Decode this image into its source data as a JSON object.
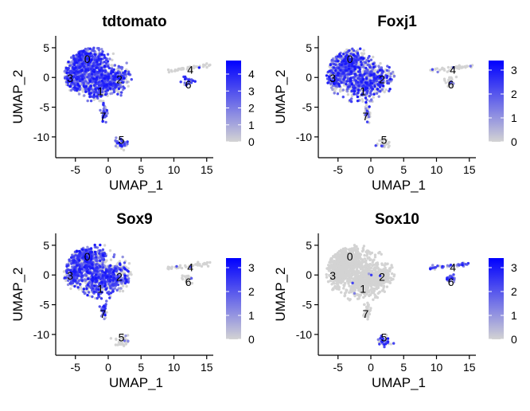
{
  "chart_data": [
    {
      "type": "scatter",
      "title": "tdtomato",
      "xlabel": "UMAP_1",
      "ylabel": "UMAP_2",
      "xlim": [
        -8,
        16
      ],
      "ylim": [
        -13.5,
        7
      ],
      "x_ticks": [
        -5,
        0,
        5,
        10,
        15
      ],
      "y_ticks": [
        5,
        0,
        -5,
        -10
      ],
      "x_tick_labels": [
        "-5",
        "0",
        "5",
        "10",
        "15"
      ],
      "y_tick_labels": [
        "5",
        "0",
        "-5",
        "-10"
      ],
      "color_scale": {
        "low": "#d3d3d3",
        "high": "#0000ff",
        "min": 0,
        "max": 4.8
      },
      "legend_ticks": [
        0,
        1,
        2,
        3,
        4
      ],
      "legend_labels": [
        "0",
        "1",
        "2",
        "3",
        "4"
      ],
      "cluster_labels": [
        {
          "label": "0",
          "x": -3.2,
          "y": 3.1
        },
        {
          "label": "1",
          "x": -1.2,
          "y": -2.3
        },
        {
          "label": "2",
          "x": 1.7,
          "y": -0.3
        },
        {
          "label": "3",
          "x": -5.8,
          "y": -0.1
        },
        {
          "label": "4",
          "x": 12.5,
          "y": 1.3
        },
        {
          "label": "5",
          "x": 2.0,
          "y": -10.5
        },
        {
          "label": "6",
          "x": 12.2,
          "y": -1.2
        },
        {
          "label": "7",
          "x": -0.8,
          "y": -6.5
        }
      ],
      "clusters": [
        {
          "id": "0",
          "x": -3.5,
          "y": 2.5,
          "sx": 1.6,
          "sy": 1.4,
          "n": 520,
          "expr": 0.7
        },
        {
          "id": "3",
          "x": -5.3,
          "y": 0.0,
          "sx": 0.7,
          "sy": 1.1,
          "n": 160,
          "expr": 0.7
        },
        {
          "id": "1",
          "x": -1.6,
          "y": -1.3,
          "sx": 1.5,
          "sy": 1.3,
          "n": 340,
          "expr": 0.68
        },
        {
          "id": "2",
          "x": 0.9,
          "y": -0.2,
          "sx": 1.4,
          "sy": 1.1,
          "n": 280,
          "expr": 0.66
        },
        {
          "id": "4",
          "x": 12.6,
          "y": 1.1,
          "sx": 1.3,
          "sy": 0.2,
          "n": 40,
          "expr": 0.05
        },
        {
          "id": "6",
          "x": 12.1,
          "y": -0.7,
          "sx": 0.4,
          "sy": 0.4,
          "n": 22,
          "expr": 0.6
        },
        {
          "id": "7",
          "x": -0.6,
          "y": -6.0,
          "sx": 0.25,
          "sy": 0.7,
          "n": 35,
          "expr": 0.75
        },
        {
          "id": "5",
          "x": 2.0,
          "y": -11.2,
          "sx": 0.5,
          "sy": 0.5,
          "n": 35,
          "expr": 0.7
        }
      ]
    },
    {
      "type": "scatter",
      "title": "Foxj1",
      "xlabel": "UMAP_1",
      "ylabel": "UMAP_2",
      "xlim": [
        -8,
        16
      ],
      "ylim": [
        -13.5,
        7
      ],
      "x_ticks": [
        -5,
        0,
        5,
        10,
        15
      ],
      "y_ticks": [
        5,
        0,
        -5,
        -10
      ],
      "x_tick_labels": [
        "-5",
        "0",
        "5",
        "10",
        "15"
      ],
      "y_tick_labels": [
        "5",
        "0",
        "-5",
        "-10"
      ],
      "color_scale": {
        "low": "#d3d3d3",
        "high": "#0000ff",
        "min": 0,
        "max": 3.4
      },
      "legend_ticks": [
        0,
        1,
        2,
        3
      ],
      "legend_labels": [
        "0",
        "1",
        "2",
        "3"
      ],
      "cluster_labels": [
        {
          "label": "0",
          "x": -3.2,
          "y": 3.1
        },
        {
          "label": "1",
          "x": -1.2,
          "y": -2.3
        },
        {
          "label": "2",
          "x": 1.7,
          "y": -0.3
        },
        {
          "label": "3",
          "x": -5.8,
          "y": -0.1
        },
        {
          "label": "4",
          "x": 12.5,
          "y": 1.3
        },
        {
          "label": "5",
          "x": 2.0,
          "y": -10.5
        },
        {
          "label": "6",
          "x": 12.2,
          "y": -1.2
        },
        {
          "label": "7",
          "x": -0.8,
          "y": -6.5
        }
      ],
      "clusters": [
        {
          "id": "0",
          "x": -3.5,
          "y": 2.5,
          "sx": 1.6,
          "sy": 1.4,
          "n": 520,
          "expr": 0.55
        },
        {
          "id": "3",
          "x": -5.3,
          "y": 0.0,
          "sx": 0.7,
          "sy": 1.1,
          "n": 160,
          "expr": 0.55
        },
        {
          "id": "1",
          "x": -1.6,
          "y": -1.3,
          "sx": 1.5,
          "sy": 1.3,
          "n": 340,
          "expr": 0.55
        },
        {
          "id": "2",
          "x": 0.9,
          "y": -0.2,
          "sx": 1.4,
          "sy": 1.1,
          "n": 280,
          "expr": 0.5
        },
        {
          "id": "4",
          "x": 12.6,
          "y": 1.1,
          "sx": 1.3,
          "sy": 0.2,
          "n": 40,
          "expr": 0.05
        },
        {
          "id": "6",
          "x": 12.1,
          "y": -0.7,
          "sx": 0.4,
          "sy": 0.4,
          "n": 22,
          "expr": 0.1
        },
        {
          "id": "7",
          "x": -0.6,
          "y": -6.0,
          "sx": 0.25,
          "sy": 0.7,
          "n": 35,
          "expr": 0.4
        },
        {
          "id": "5",
          "x": 2.0,
          "y": -11.2,
          "sx": 0.5,
          "sy": 0.5,
          "n": 35,
          "expr": 0.05
        }
      ]
    },
    {
      "type": "scatter",
      "title": "Sox9",
      "xlabel": "UMAP_1",
      "ylabel": "UMAP_2",
      "xlim": [
        -8,
        16
      ],
      "ylim": [
        -13.5,
        7
      ],
      "x_ticks": [
        -5,
        0,
        5,
        10,
        15
      ],
      "y_ticks": [
        5,
        0,
        -5,
        -10
      ],
      "x_tick_labels": [
        "-5",
        "0",
        "5",
        "10",
        "15"
      ],
      "y_tick_labels": [
        "5",
        "0",
        "-5",
        "-10"
      ],
      "color_scale": {
        "low": "#d3d3d3",
        "high": "#0000ff",
        "min": 0,
        "max": 3.4
      },
      "legend_ticks": [
        0,
        1,
        2,
        3
      ],
      "legend_labels": [
        "0",
        "1",
        "2",
        "3"
      ],
      "cluster_labels": [
        {
          "label": "0",
          "x": -3.2,
          "y": 3.1
        },
        {
          "label": "1",
          "x": -1.2,
          "y": -2.3
        },
        {
          "label": "2",
          "x": 1.7,
          "y": -0.3
        },
        {
          "label": "3",
          "x": -5.8,
          "y": -0.1
        },
        {
          "label": "4",
          "x": 12.5,
          "y": 1.3
        },
        {
          "label": "5",
          "x": 2.0,
          "y": -10.5
        },
        {
          "label": "6",
          "x": 12.2,
          "y": -1.2
        },
        {
          "label": "7",
          "x": -0.8,
          "y": -6.5
        }
      ],
      "clusters": [
        {
          "id": "0",
          "x": -3.5,
          "y": 2.5,
          "sx": 1.6,
          "sy": 1.4,
          "n": 520,
          "expr": 0.6
        },
        {
          "id": "3",
          "x": -5.3,
          "y": 0.0,
          "sx": 0.7,
          "sy": 1.1,
          "n": 160,
          "expr": 0.6
        },
        {
          "id": "1",
          "x": -1.6,
          "y": -1.3,
          "sx": 1.5,
          "sy": 1.3,
          "n": 340,
          "expr": 0.58
        },
        {
          "id": "2",
          "x": 0.9,
          "y": -0.2,
          "sx": 1.4,
          "sy": 1.1,
          "n": 280,
          "expr": 0.5
        },
        {
          "id": "4",
          "x": 12.6,
          "y": 1.1,
          "sx": 1.3,
          "sy": 0.2,
          "n": 40,
          "expr": 0.05
        },
        {
          "id": "6",
          "x": 12.1,
          "y": -0.7,
          "sx": 0.4,
          "sy": 0.4,
          "n": 22,
          "expr": 0.05
        },
        {
          "id": "7",
          "x": -0.6,
          "y": -6.0,
          "sx": 0.25,
          "sy": 0.7,
          "n": 35,
          "expr": 0.6
        },
        {
          "id": "5",
          "x": 2.0,
          "y": -11.2,
          "sx": 0.5,
          "sy": 0.5,
          "n": 35,
          "expr": 0.05
        }
      ]
    },
    {
      "type": "scatter",
      "title": "Sox10",
      "xlabel": "UMAP_1",
      "ylabel": "UMAP_2",
      "xlim": [
        -8,
        16
      ],
      "ylim": [
        -13.5,
        7
      ],
      "x_ticks": [
        -5,
        0,
        5,
        10,
        15
      ],
      "y_ticks": [
        5,
        0,
        -5,
        -10
      ],
      "x_tick_labels": [
        "-5",
        "0",
        "5",
        "10",
        "15"
      ],
      "y_tick_labels": [
        "5",
        "0",
        "-5",
        "-10"
      ],
      "color_scale": {
        "low": "#d3d3d3",
        "high": "#0000ff",
        "min": 0,
        "max": 3.4
      },
      "legend_ticks": [
        0,
        1,
        2,
        3
      ],
      "legend_labels": [
        "0",
        "1",
        "2",
        "3"
      ],
      "cluster_labels": [
        {
          "label": "0",
          "x": -3.2,
          "y": 3.1
        },
        {
          "label": "1",
          "x": -1.2,
          "y": -2.3
        },
        {
          "label": "2",
          "x": 1.7,
          "y": -0.3
        },
        {
          "label": "3",
          "x": -5.8,
          "y": -0.1
        },
        {
          "label": "4",
          "x": 12.5,
          "y": 1.3
        },
        {
          "label": "5",
          "x": 2.0,
          "y": -10.5
        },
        {
          "label": "6",
          "x": 12.2,
          "y": -1.2
        },
        {
          "label": "7",
          "x": -0.8,
          "y": -6.5
        }
      ],
      "clusters": [
        {
          "id": "0",
          "x": -3.5,
          "y": 2.5,
          "sx": 1.6,
          "sy": 1.4,
          "n": 520,
          "expr": 0.0
        },
        {
          "id": "3",
          "x": -5.3,
          "y": 0.0,
          "sx": 0.7,
          "sy": 1.1,
          "n": 160,
          "expr": 0.0
        },
        {
          "id": "1",
          "x": -1.6,
          "y": -1.3,
          "sx": 1.5,
          "sy": 1.3,
          "n": 340,
          "expr": 0.01
        },
        {
          "id": "2",
          "x": 0.9,
          "y": -0.2,
          "sx": 1.4,
          "sy": 1.1,
          "n": 280,
          "expr": 0.01
        },
        {
          "id": "4",
          "x": 12.6,
          "y": 1.1,
          "sx": 1.3,
          "sy": 0.2,
          "n": 40,
          "expr": 0.75
        },
        {
          "id": "6",
          "x": 12.1,
          "y": -0.7,
          "sx": 0.4,
          "sy": 0.4,
          "n": 22,
          "expr": 0.75
        },
        {
          "id": "7",
          "x": -0.6,
          "y": -6.0,
          "sx": 0.25,
          "sy": 0.7,
          "n": 35,
          "expr": 0.0
        },
        {
          "id": "5",
          "x": 2.0,
          "y": -11.2,
          "sx": 0.5,
          "sy": 0.5,
          "n": 35,
          "expr": 0.7
        }
      ]
    }
  ]
}
